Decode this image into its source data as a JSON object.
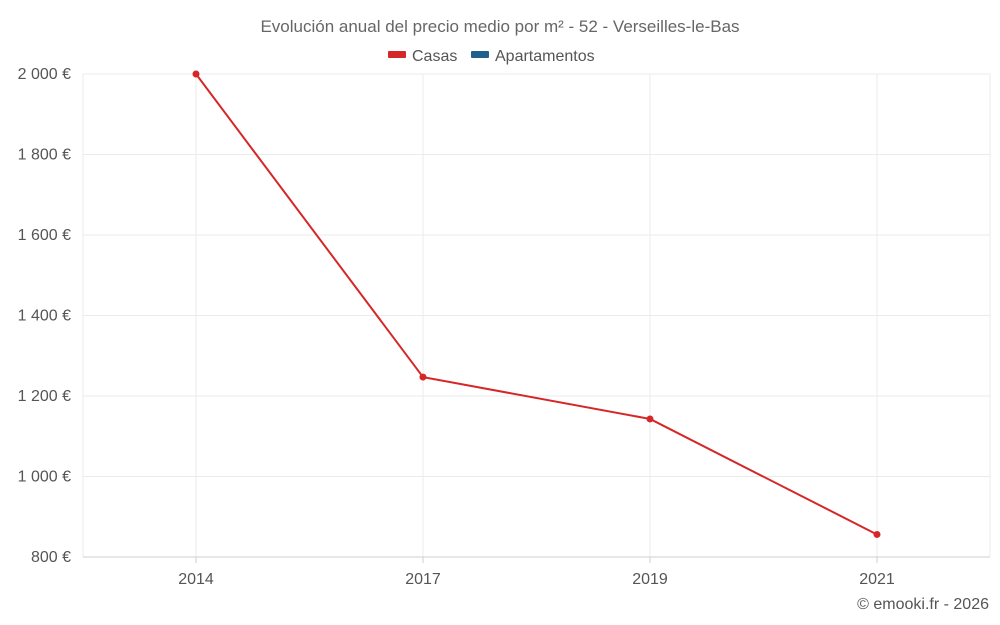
{
  "chart_data": {
    "type": "line",
    "title": "Evolución anual del precio medio por m² - 52 - Verseilles-le-Bas",
    "categories": [
      "2014",
      "2017",
      "2019",
      "2021"
    ],
    "series": [
      {
        "name": "Casas",
        "color": "#d62728",
        "values": [
          2000,
          1247,
          1143,
          856
        ]
      },
      {
        "name": "Apartamentos",
        "color": "#1f5f8b",
        "values": [
          null,
          null,
          null,
          null
        ]
      }
    ],
    "ylim": [
      800,
      2000
    ],
    "yticks": [
      800,
      1000,
      1200,
      1400,
      1600,
      1800,
      2000
    ],
    "ytick_labels": [
      "800 €",
      "1 000 €",
      "1 200 €",
      "1 400 €",
      "1 600 €",
      "1 800 €",
      "2 000 €"
    ],
    "xlabel": "",
    "ylabel": "",
    "grid": true,
    "legend_position": "top-center"
  },
  "credit": "© emooki.fr - 2026"
}
